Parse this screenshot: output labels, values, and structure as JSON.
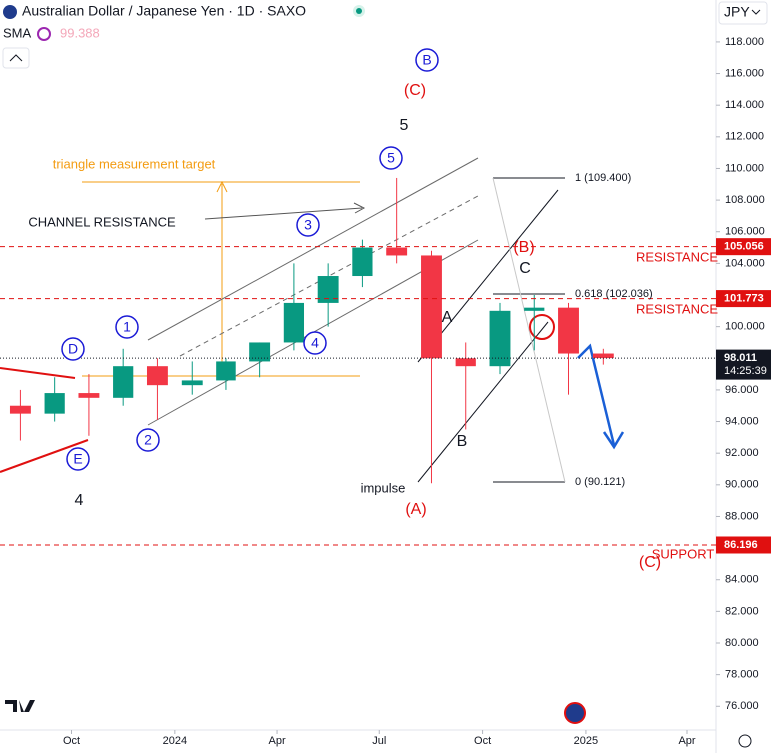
{
  "chart_data": {
    "type": "candlestick",
    "title": "Australian Dollar / Japanese Yen · 1D · SAXO",
    "indicator": {
      "name": "SMA",
      "value": "99.388",
      "color": "#f4a7b9"
    },
    "currency": "JPY",
    "x": [
      "2023-08",
      "2023-09",
      "2023-10",
      "2023-11",
      "2023-12",
      "2024-01",
      "2024-02",
      "2024-03",
      "2024-04",
      "2024-05",
      "2024-06",
      "2024-07",
      "2024-08",
      "2024-09",
      "2024-10",
      "2024-11",
      "2024-12",
      "2025-01"
    ],
    "open": [
      95.0,
      94.5,
      95.8,
      95.5,
      97.5,
      96.3,
      96.6,
      97.8,
      99.0,
      101.5,
      103.2,
      105.0,
      104.5,
      98.0,
      97.5,
      101.0,
      101.2,
      98.3
    ],
    "high": [
      96.0,
      96.8,
      97.0,
      98.6,
      98.0,
      97.8,
      98.0,
      99.0,
      104.0,
      104.0,
      105.5,
      109.4,
      104.8,
      99.0,
      101.5,
      102.0,
      101.5,
      98.6
    ],
    "low": [
      92.8,
      94.0,
      93.1,
      95.0,
      94.1,
      95.7,
      96.0,
      96.8,
      98.5,
      100.0,
      102.5,
      104.0,
      90.1,
      93.5,
      97.0,
      98.5,
      95.7,
      97.6
    ],
    "close": [
      94.5,
      95.8,
      95.5,
      97.5,
      96.3,
      96.6,
      97.8,
      99.0,
      101.5,
      103.2,
      105.0,
      104.5,
      98.0,
      97.5,
      101.0,
      101.2,
      98.3,
      98.011
    ],
    "up_color": "#089981",
    "down_color": "#f23645",
    "xlim": [
      "2023-08",
      "2025-04"
    ],
    "xticks": [
      {
        "value": "2023-10",
        "label": "Oct"
      },
      {
        "value": "2024-01",
        "label": "2024"
      },
      {
        "value": "2024-04",
        "label": "Apr"
      },
      {
        "value": "2024-07",
        "label": "Jul"
      },
      {
        "value": "2024-10",
        "label": "Oct"
      },
      {
        "value": "2025-01",
        "label": "2025"
      },
      {
        "value": "2025-04",
        "label": "Apr"
      }
    ],
    "ylim": [
      74.5,
      120.65
    ],
    "yticks": [
      {
        "value": 76,
        "label": "76.000"
      },
      {
        "value": 78,
        "label": "78.000"
      },
      {
        "value": 80,
        "label": "80.000"
      },
      {
        "value": 82,
        "label": "82.000"
      },
      {
        "value": 84,
        "label": "84.000"
      },
      {
        "value": 86,
        "label": "86.000"
      },
      {
        "value": 88,
        "label": "88.000"
      },
      {
        "value": 90,
        "label": "90.000"
      },
      {
        "value": 92,
        "label": "92.000"
      },
      {
        "value": 94,
        "label": "94.000"
      },
      {
        "value": 96,
        "label": "96.000"
      },
      {
        "value": 98,
        "label": "98.000"
      },
      {
        "value": 100,
        "label": "100.000"
      },
      {
        "value": 102,
        "label": "102.000"
      },
      {
        "value": 104,
        "label": "104.000"
      },
      {
        "value": 106,
        "label": "106.000"
      },
      {
        "value": 108,
        "label": "108.000"
      },
      {
        "value": 110,
        "label": "110.000"
      },
      {
        "value": 112,
        "label": "112.000"
      },
      {
        "value": 114,
        "label": "114.000"
      },
      {
        "value": 116,
        "label": "116.000"
      },
      {
        "value": 118,
        "label": "118.000"
      }
    ],
    "price_lines": [
      {
        "value": 105.056,
        "color": "#e01010",
        "style": "dashed"
      },
      {
        "value": 101.773,
        "color": "#e01010",
        "style": "dashed"
      },
      {
        "value": 86.196,
        "color": "#e01010",
        "style": "dashed"
      },
      {
        "value": 98.011,
        "color": "#131722",
        "style": "dotted",
        "countdown": "14:25:39"
      }
    ],
    "fib_levels": [
      "1 (109.400)",
      "0.618 (102.036)",
      "0 (90.121)"
    ],
    "annotations": [
      {
        "text": "1",
        "color": "#1a1ad6",
        "circled": true
      },
      {
        "text": "2",
        "color": "#1a1ad6",
        "circled": true
      },
      {
        "text": "3",
        "color": "#1a1ad6",
        "circled": true
      },
      {
        "text": "4",
        "color": "#1a1ad6",
        "circled": true
      },
      {
        "text": "5",
        "color": "#1a1ad6",
        "circled": true
      },
      {
        "text": "D",
        "color": "#1a1ad6",
        "circled": true
      },
      {
        "text": "E",
        "color": "#1a1ad6",
        "circled": true
      },
      {
        "text": "B",
        "color": "#1a1ad6",
        "circled": true
      },
      {
        "text": "(C)",
        "color": "#e01010",
        "circled": false
      },
      {
        "text": "5",
        "color": "#131722",
        "circled": false
      },
      {
        "text": "(B)",
        "color": "#e01010",
        "circled": false
      },
      {
        "text": "C",
        "color": "#131722",
        "circled": false
      },
      {
        "text": "A",
        "color": "#131722",
        "circled": false
      },
      {
        "text": "B",
        "color": "#131722",
        "circled": false
      },
      {
        "text": "impulse",
        "color": "#131722",
        "circled": false
      },
      {
        "text": "(A)",
        "color": "#e01010",
        "circled": false
      },
      {
        "text": "4",
        "color": "#131722",
        "circled": false
      },
      {
        "text": "(C)",
        "color": "#e01010",
        "circled": false
      },
      {
        "text": "triangle measurement target",
        "color": "#f39c12",
        "circled": false
      },
      {
        "text": "CHANNEL RESISTANCE",
        "color": "#131722",
        "circled": false
      },
      {
        "text": "RESISTANCE",
        "color": "#e01010",
        "circled": false
      },
      {
        "text": "RESISTANCE",
        "color": "#e01010",
        "circled": false
      },
      {
        "text": "SUPPORT",
        "color": "#e01010",
        "circled": false
      }
    ]
  }
}
